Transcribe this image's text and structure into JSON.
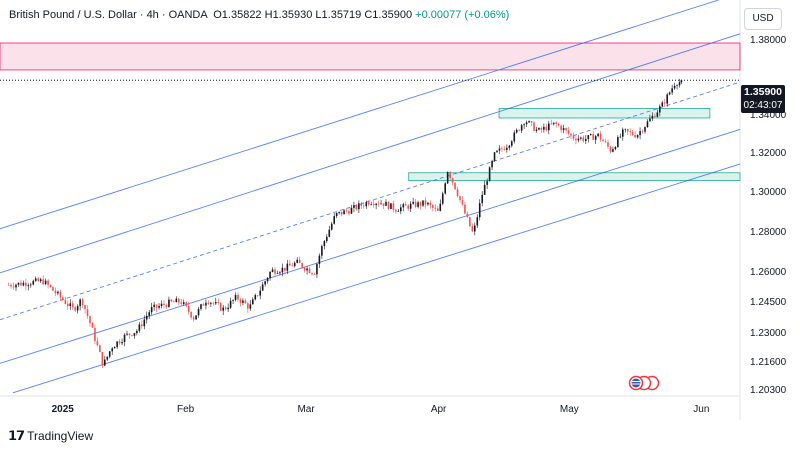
{
  "header": {
    "symbol": "British Pound / U.S. Dollar",
    "interval": "4h",
    "source": "OANDA",
    "open": "O1.35822",
    "high": "H1.35930",
    "low": "L1.35719",
    "close": "C1.35900",
    "change": "+0.00077 (+0.06%)"
  },
  "currency_button": "USD",
  "price_tag": {
    "price": "1.35900",
    "countdown": "02:43:07"
  },
  "brand": "TradingView",
  "colors": {
    "up": "#131722",
    "down": "#ef5350",
    "channel": "#2962ff",
    "supply_zone": "#f7cbd9",
    "demand_zone": "#cdeee3"
  },
  "chart_data": {
    "type": "candlestick",
    "symbol": "GBP/USD",
    "timeframe": "4h",
    "y_axis": {
      "scale": "log",
      "range": [
        1.2005,
        1.4025
      ],
      "ticks": [
        "1.38000",
        "1.36000",
        "1.34000",
        "1.32000",
        "1.30000",
        "1.28000",
        "1.26000",
        "1.24500",
        "1.23000",
        "1.21600",
        "1.20300"
      ]
    },
    "x_axis": {
      "labels": [
        "2025",
        "Feb",
        "Mar",
        "Apr",
        "May",
        "Jun"
      ],
      "label_dates": [
        "2025-01-01",
        "2025-02-01",
        "2025-03-01",
        "2025-04-01",
        "2025-05-01",
        "2025-06-01"
      ],
      "range": [
        "2024-12-20",
        "2025-06-10"
      ]
    },
    "last_price": 1.359,
    "close_path": [
      [
        "2024-12-22",
        1.254
      ],
      [
        "2024-12-30",
        1.256
      ],
      [
        "2025-01-03",
        1.248
      ],
      [
        "2025-01-06",
        1.242
      ],
      [
        "2025-01-08",
        1.247
      ],
      [
        "2025-01-10",
        1.235
      ],
      [
        "2025-01-13",
        1.215
      ],
      [
        "2025-01-15",
        1.224
      ],
      [
        "2025-01-18",
        1.229
      ],
      [
        "2025-01-21",
        1.232
      ],
      [
        "2025-01-24",
        1.242
      ],
      [
        "2025-01-28",
        1.245
      ],
      [
        "2025-01-31",
        1.246
      ],
      [
        "2025-02-03",
        1.238
      ],
      [
        "2025-02-06",
        1.247
      ],
      [
        "2025-02-10",
        1.242
      ],
      [
        "2025-02-13",
        1.248
      ],
      [
        "2025-02-16",
        1.243
      ],
      [
        "2025-02-18",
        1.25
      ],
      [
        "2025-02-21",
        1.261
      ],
      [
        "2025-02-24",
        1.262
      ],
      [
        "2025-02-27",
        1.265
      ],
      [
        "2025-03-03",
        1.26
      ],
      [
        "2025-03-05",
        1.274
      ],
      [
        "2025-03-08",
        1.289
      ],
      [
        "2025-03-12",
        1.292
      ],
      [
        "2025-03-16",
        1.296
      ],
      [
        "2025-03-19",
        1.295
      ],
      [
        "2025-03-22",
        1.292
      ],
      [
        "2025-03-26",
        1.294
      ],
      [
        "2025-03-29",
        1.295
      ],
      [
        "2025-04-01",
        1.29
      ],
      [
        "2025-04-03",
        1.312
      ],
      [
        "2025-04-05",
        1.302
      ],
      [
        "2025-04-07",
        1.29
      ],
      [
        "2025-04-09",
        1.279
      ],
      [
        "2025-04-11",
        1.299
      ],
      [
        "2025-04-14",
        1.32
      ],
      [
        "2025-04-17",
        1.325
      ],
      [
        "2025-04-21",
        1.338
      ],
      [
        "2025-04-24",
        1.332
      ],
      [
        "2025-04-28",
        1.336
      ],
      [
        "2025-04-30",
        1.333
      ],
      [
        "2025-05-02",
        1.329
      ],
      [
        "2025-05-05",
        1.328
      ],
      [
        "2025-05-08",
        1.33
      ],
      [
        "2025-05-11",
        1.322
      ],
      [
        "2025-05-14",
        1.332
      ],
      [
        "2025-05-17",
        1.33
      ],
      [
        "2025-05-20",
        1.338
      ],
      [
        "2025-05-23",
        1.346
      ],
      [
        "2025-05-26",
        1.358
      ]
    ],
    "zones": [
      {
        "name": "supply",
        "from": "2024-12-20",
        "to": "2025-06-10",
        "low": 1.3645,
        "high": 1.379
      },
      {
        "name": "demand-upper",
        "from": "2025-04-15",
        "to": "2025-06-03",
        "low": 1.339,
        "high": 1.344
      },
      {
        "name": "demand-lower",
        "from": "2025-03-25",
        "to": "2025-06-10",
        "low": 1.3065,
        "high": 1.3105
      }
    ],
    "channel_lines": [
      {
        "name": "channel-outer-top",
        "style": "solid",
        "points": [
          [
            "2024-12-20",
            1.282
          ],
          [
            "2025-06-05",
            1.4025
          ]
        ]
      },
      {
        "name": "channel-inner-top",
        "style": "solid",
        "points": [
          [
            "2024-12-20",
            1.26
          ],
          [
            "2025-06-10",
            1.384
          ]
        ]
      },
      {
        "name": "channel-mid",
        "style": "dashed",
        "points": [
          [
            "2024-12-20",
            1.237
          ],
          [
            "2025-06-10",
            1.358
          ]
        ]
      },
      {
        "name": "channel-inner-bottom",
        "style": "solid",
        "points": [
          [
            "2024-12-20",
            1.216
          ],
          [
            "2025-06-10",
            1.333
          ]
        ]
      },
      {
        "name": "channel-outer-bottom",
        "style": "solid",
        "points": [
          [
            "2024-12-23",
            1.202
          ],
          [
            "2025-06-10",
            1.315
          ]
        ]
      }
    ]
  }
}
